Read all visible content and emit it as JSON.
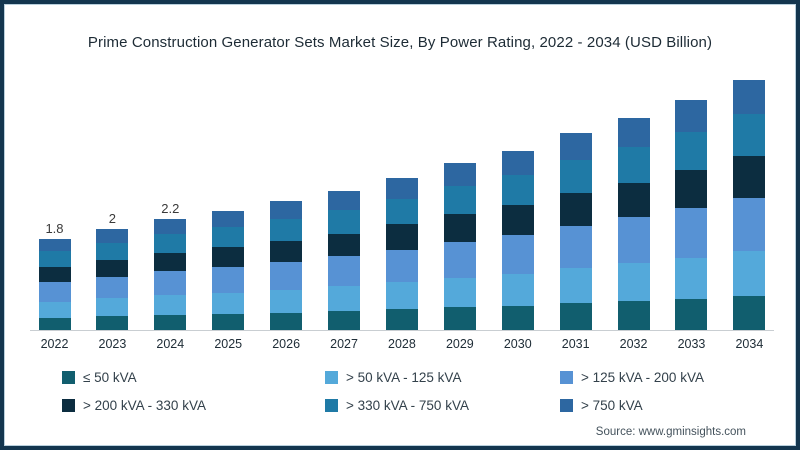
{
  "title": "Prime Construction Generator Sets Market Size, By Power Rating, 2022 - 2034 (USD Billion)",
  "source": "Source: www.gminsights.com",
  "colors": {
    "border": "#14364f",
    "border_inner_line": "#b9d0dd",
    "axis_line": "#c9ced2",
    "title_text": "#1d2b35",
    "xlabel_text": "#202e38",
    "legend_text": "#33414b",
    "total_label_text": "#3a3a3a",
    "source_text": "#44525c"
  },
  "chart_data": {
    "type": "bar",
    "stacked": true,
    "title": "Prime Construction Generator Sets Market Size, By Power Rating, 2022 - 2034 (USD Billion)",
    "xlabel": "",
    "ylabel": "",
    "ylim": [
      0,
      5.2
    ],
    "grid": false,
    "legend_position": "bottom",
    "y_axis_shown": false,
    "categories": [
      "2022",
      "2023",
      "2024",
      "2025",
      "2026",
      "2027",
      "2028",
      "2029",
      "2030",
      "2031",
      "2032",
      "2033",
      "2034"
    ],
    "bar_total_labels": [
      "1.8",
      "2",
      "2.2",
      "",
      "",
      "",
      "",
      "",
      "",
      "",
      "",
      "",
      ""
    ],
    "totals": [
      1.8,
      2.0,
      2.2,
      2.35,
      2.55,
      2.75,
      3.0,
      3.3,
      3.55,
      3.9,
      4.2,
      4.55,
      4.95
    ],
    "series": [
      {
        "name": "≤ 50 kVA",
        "color": "#115e6e",
        "values": [
          0.24,
          0.27,
          0.3,
          0.32,
          0.34,
          0.37,
          0.41,
          0.45,
          0.48,
          0.53,
          0.57,
          0.61,
          0.67
        ]
      },
      {
        "name": "> 50 kVA - 125 kVA",
        "color": "#54a9da",
        "values": [
          0.32,
          0.36,
          0.4,
          0.42,
          0.46,
          0.5,
          0.54,
          0.59,
          0.64,
          0.7,
          0.76,
          0.82,
          0.89
        ]
      },
      {
        "name": "> 125 kVA - 200 kVA",
        "color": "#5792d4",
        "values": [
          0.39,
          0.43,
          0.47,
          0.51,
          0.55,
          0.59,
          0.64,
          0.71,
          0.76,
          0.84,
          0.9,
          0.98,
          1.06
        ]
      },
      {
        "name": "> 200 kVA - 330 kVA",
        "color": "#0c2d40",
        "values": [
          0.3,
          0.33,
          0.36,
          0.39,
          0.42,
          0.45,
          0.5,
          0.54,
          0.59,
          0.64,
          0.69,
          0.75,
          0.82
        ]
      },
      {
        "name": "> 330 kVA - 750 kVA",
        "color": "#1f7aa6",
        "values": [
          0.31,
          0.34,
          0.37,
          0.4,
          0.43,
          0.47,
          0.51,
          0.56,
          0.6,
          0.66,
          0.71,
          0.77,
          0.84
        ]
      },
      {
        "name": "> 750 kVA",
        "color": "#2d67a1",
        "values": [
          0.24,
          0.27,
          0.3,
          0.31,
          0.35,
          0.37,
          0.4,
          0.45,
          0.48,
          0.53,
          0.57,
          0.62,
          0.67
        ]
      }
    ]
  }
}
